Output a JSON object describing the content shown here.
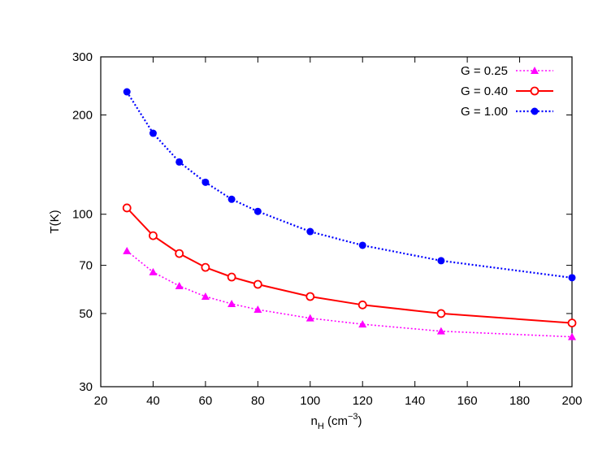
{
  "chart_data": {
    "type": "line",
    "title": "",
    "xlabel": "n_H (cm^-3)",
    "xlabel_parts": {
      "base": "n",
      "sub": "H",
      "unit_open": " (cm",
      "sup": "−3",
      "unit_close": ")"
    },
    "ylabel": "T(K)",
    "xscale": "linear",
    "yscale": "log",
    "xlim": [
      20,
      200
    ],
    "ylim": [
      30,
      300
    ],
    "xticks": [
      20,
      40,
      60,
      80,
      100,
      120,
      140,
      160,
      180,
      200
    ],
    "yticks": [
      30,
      50,
      70,
      100,
      200,
      300
    ],
    "grid": false,
    "legend_position": "upper right",
    "x": [
      30,
      40,
      50,
      60,
      70,
      80,
      100,
      120,
      150,
      200
    ],
    "series": [
      {
        "name": "G = 0.25",
        "color": "#ff00ff",
        "line": "dotted",
        "marker": "filled-triangle",
        "values": [
          77.4,
          66.8,
          60.6,
          56.3,
          53.5,
          51.4,
          48.4,
          46.4,
          44.2,
          42.5
        ]
      },
      {
        "name": "G = 0.40",
        "color": "#ff0000",
        "line": "solid",
        "marker": "open-circle",
        "values": [
          104.5,
          86.1,
          76.0,
          69.0,
          64.5,
          61.3,
          56.3,
          53.1,
          50.0,
          46.8
        ]
      },
      {
        "name": "G = 1.00",
        "color": "#0000ff",
        "line": "dotted",
        "marker": "filled-circle",
        "values": [
          235,
          176,
          144,
          125,
          111,
          102,
          88.6,
          80.5,
          72.3,
          64.2
        ]
      }
    ]
  }
}
